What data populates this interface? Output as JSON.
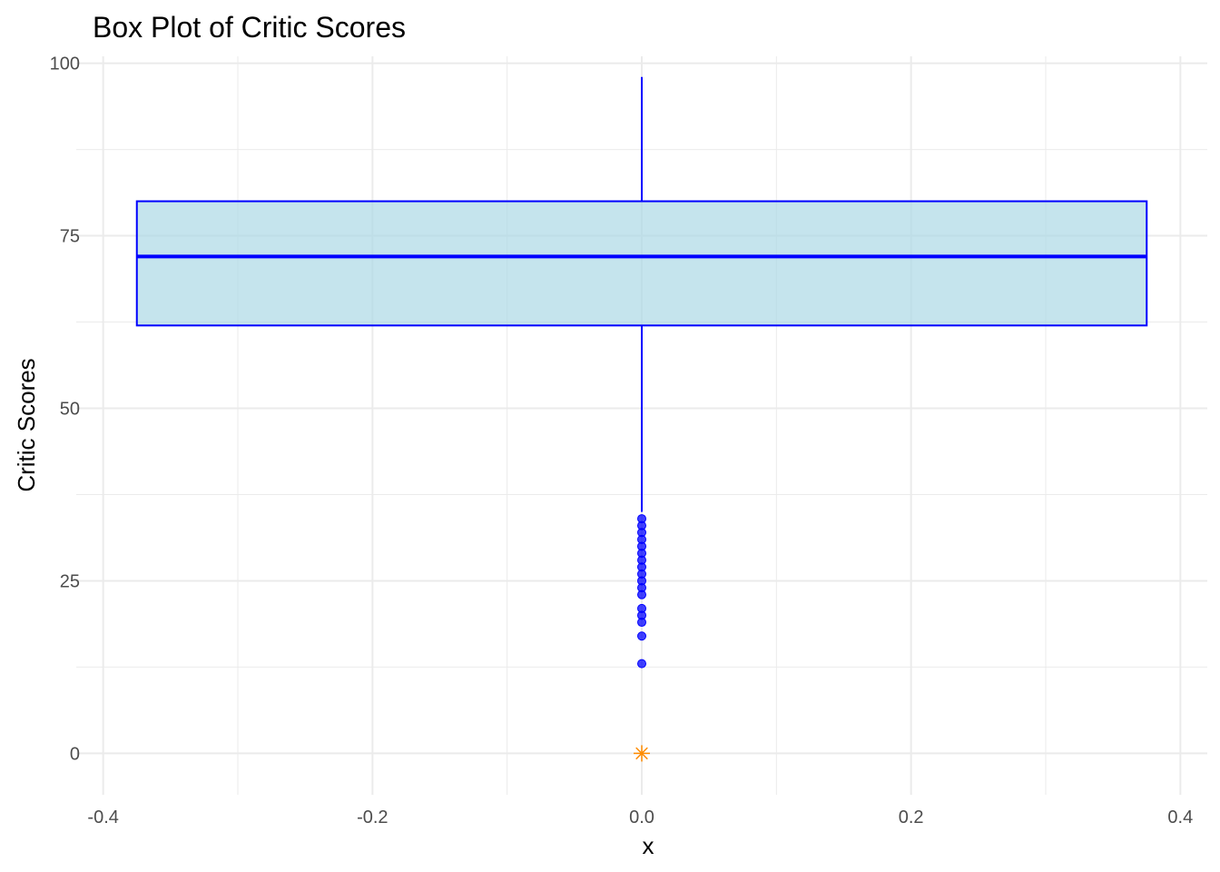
{
  "chart_data": {
    "type": "box",
    "title": "Box Plot of Critic Scores",
    "xlabel": "x",
    "ylabel": "Critic Scores",
    "xlim": [
      -0.42,
      0.42
    ],
    "ylim": [
      -6,
      101
    ],
    "x_ticks": [
      -0.4,
      -0.2,
      0.0,
      0.2,
      0.4
    ],
    "x_tick_labels": [
      "-0.4",
      "-0.2",
      "0.0",
      "0.2",
      "0.4"
    ],
    "y_ticks": [
      0,
      25,
      50,
      75,
      100
    ],
    "y_tick_labels": [
      "0",
      "25",
      "50",
      "75",
      "100"
    ],
    "grid": true,
    "box": {
      "x": 0.0,
      "box_from": -0.375,
      "box_to": 0.375,
      "q1": 62,
      "median": 72,
      "q3": 80,
      "whisker_low": 35,
      "whisker_high": 98,
      "outliers": [
        34,
        33,
        32,
        31,
        30,
        29,
        28,
        27,
        26,
        25,
        24,
        23,
        21,
        20,
        19,
        17,
        13
      ],
      "mean": 0
    },
    "colors": {
      "box_fill": "#add8e6",
      "box_stroke": "#0000ff",
      "outlier": "#0000ff",
      "mean_marker": "#ff8c00",
      "grid": "#ebebeb"
    }
  }
}
